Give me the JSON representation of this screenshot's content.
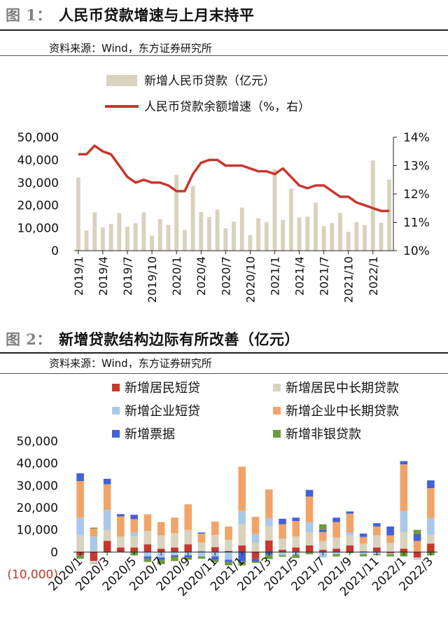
{
  "figure1": {
    "num": "图 1：",
    "title": "人民币贷款增速与上月末持平",
    "source": "资料来源：Wind，东方证券研究所"
  },
  "figure2": {
    "num": "图 2：",
    "title": "新增贷款结构边际有所改善（亿元）",
    "source": "资料来源：Wind，东方证券研究所"
  },
  "colors": {
    "bar1": "#d9d2bd",
    "line1": "#c8372d",
    "short_household": "#c8372d",
    "long_household": "#d9d2bd",
    "short_corporate": "#a9c8ea",
    "long_corporate": "#f2a468",
    "bills": "#4361d8",
    "nonbank": "#6e9a3f"
  },
  "chart_data": [
    {
      "type": "bar",
      "x": [
        "2019/1",
        "2019/2",
        "2019/3",
        "2019/4",
        "2019/5",
        "2019/6",
        "2019/7",
        "2019/8",
        "2019/9",
        "2019/10",
        "2019/11",
        "2019/12",
        "2020/1",
        "2020/2",
        "2020/3",
        "2020/4",
        "2020/5",
        "2020/6",
        "2020/7",
        "2020/8",
        "2020/9",
        "2020/10",
        "2020/11",
        "2020/12",
        "2021/1",
        "2021/2",
        "2021/3",
        "2021/4",
        "2021/5",
        "2021/6",
        "2021/7",
        "2021/8",
        "2021/9",
        "2021/10",
        "2021/11",
        "2021/12",
        "2022/1",
        "2022/2",
        "2022/3"
      ],
      "x_tick_labels": [
        "2019/1",
        "2019/4",
        "2019/7",
        "2019/10",
        "2020/1",
        "2020/4",
        "2020/7",
        "2020/10",
        "2021/1",
        "2021/4",
        "2021/7",
        "2021/10",
        "2022/1"
      ],
      "series": [
        {
          "name": "新增人民币贷款（亿元）",
          "type": "bar",
          "axis": "left",
          "values": [
            32300,
            8900,
            16900,
            10200,
            11800,
            16600,
            10600,
            12100,
            16900,
            6600,
            13900,
            11400,
            33400,
            9100,
            28500,
            17000,
            14800,
            18100,
            9900,
            12800,
            19000,
            6900,
            14300,
            12600,
            35800,
            13600,
            27300,
            14700,
            15000,
            21200,
            10800,
            12200,
            16600,
            8300,
            12700,
            11300,
            39800,
            12300,
            31300
          ]
        },
        {
          "name": "人民币贷款余额增速（%，右）",
          "type": "line",
          "axis": "right",
          "values": [
            13.4,
            13.4,
            13.7,
            13.5,
            13.4,
            13.0,
            12.6,
            12.4,
            12.5,
            12.4,
            12.4,
            12.3,
            12.1,
            12.1,
            12.7,
            13.1,
            13.2,
            13.2,
            13.0,
            13.0,
            13.0,
            12.9,
            12.8,
            12.8,
            12.7,
            12.9,
            12.6,
            12.3,
            12.2,
            12.3,
            12.3,
            12.1,
            11.9,
            11.9,
            11.7,
            11.6,
            11.5,
            11.4,
            11.4
          ]
        }
      ],
      "y_left": {
        "ticks": [
          "0",
          "10,000",
          "20,000",
          "30,000",
          "40,000",
          "50,000"
        ],
        "ylim": [
          0,
          50000
        ]
      },
      "y_right": {
        "ticks": [
          "10%",
          "11%",
          "12%",
          "13%",
          "14%"
        ],
        "ylim": [
          10,
          14
        ]
      },
      "grid": false,
      "legend": "top"
    },
    {
      "type": "bar",
      "stacked": true,
      "x": [
        "2020/1",
        "2020/2",
        "2020/3",
        "2020/4",
        "2020/5",
        "2020/6",
        "2020/7",
        "2020/8",
        "2020/9",
        "2020/10",
        "2020/11",
        "2020/12",
        "2021/1",
        "2021/2",
        "2021/3",
        "2021/4",
        "2021/5",
        "2021/6",
        "2021/7",
        "2021/8",
        "2021/9",
        "2021/10",
        "2021/11",
        "2021/12",
        "2022/1",
        "2022/2",
        "2022/3"
      ],
      "x_tick_labels": [
        "2020/1",
        "2020/3",
        "2020/5",
        "2020/7",
        "2020/9",
        "2020/11",
        "2021/1",
        "2021/3",
        "2021/5",
        "2021/7",
        "2021/9",
        "2021/11",
        "2022/1",
        "2022/3"
      ],
      "series": [
        {
          "name": "新增居民短贷",
          "color_key": "short_household",
          "values": [
            -1500,
            -4000,
            5000,
            2000,
            2000,
            3500,
            1500,
            2000,
            3500,
            300,
            2200,
            500,
            3000,
            -3000,
            5200,
            1000,
            2000,
            3000,
            1000,
            1500,
            3000,
            300,
            2000,
            -500,
            1500,
            -2500,
            3800
          ]
        },
        {
          "name": "新增居民中长期贷款",
          "color_key": "long_household",
          "values": [
            7500,
            -1000,
            5000,
            5000,
            5000,
            6000,
            6000,
            6500,
            6500,
            4000,
            5500,
            5000,
            9500,
            4000,
            6500,
            5000,
            5000,
            6000,
            4000,
            5000,
            4500,
            3500,
            5500,
            4000,
            7500,
            -500,
            4000
          ]
        },
        {
          "name": "新增企业短贷",
          "color_key": "short_corporate",
          "values": [
            8000,
            7000,
            9000,
            -200,
            1800,
            -2000,
            -2500,
            -1500,
            -1500,
            -2000,
            -2000,
            -3500,
            6000,
            4200,
            3500,
            -1500,
            -1200,
            4500,
            -2500,
            -1000,
            1300,
            -1000,
            -1000,
            -500,
            9500,
            -500,
            7500
          ]
        },
        {
          "name": "新增企业中长期贷款",
          "color_key": "long_corporate",
          "values": [
            16500,
            3500,
            11500,
            9000,
            6000,
            7500,
            6000,
            7000,
            11500,
            4000,
            6000,
            6000,
            20000,
            7700,
            13000,
            6500,
            7000,
            11500,
            4000,
            7000,
            8500,
            3000,
            4000,
            3500,
            21000,
            5000,
            13500
          ]
        },
        {
          "name": "新增票据",
          "color_key": "bills",
          "values": [
            3500,
            -200,
            2500,
            1000,
            2000,
            -1000,
            -1000,
            -600,
            -1000,
            500,
            -1500,
            -1000,
            -4000,
            -1300,
            -1200,
            2500,
            1500,
            3000,
            1000,
            2000,
            1000,
            1500,
            1500,
            4000,
            1500,
            3000,
            3500
          ]
        },
        {
          "name": "新增非银贷款",
          "color_key": "nonbank",
          "values": [
            -1500,
            500,
            -300,
            100,
            -1500,
            -1500,
            -2000,
            -2000,
            -1000,
            -1000,
            -1000,
            -1500,
            -2000,
            -600,
            -2000,
            -600,
            -1500,
            -1000,
            2500,
            -1000,
            -500,
            -1000,
            -500,
            -1000,
            -2000,
            2000,
            -1500
          ]
        }
      ],
      "y": {
        "ticks": [
          "(10,000)",
          "0",
          "10,000",
          "20,000",
          "30,000",
          "40,000",
          "50,000"
        ],
        "ylim": [
          -10000,
          50000
        ]
      },
      "grid": false,
      "legend": "top"
    }
  ]
}
